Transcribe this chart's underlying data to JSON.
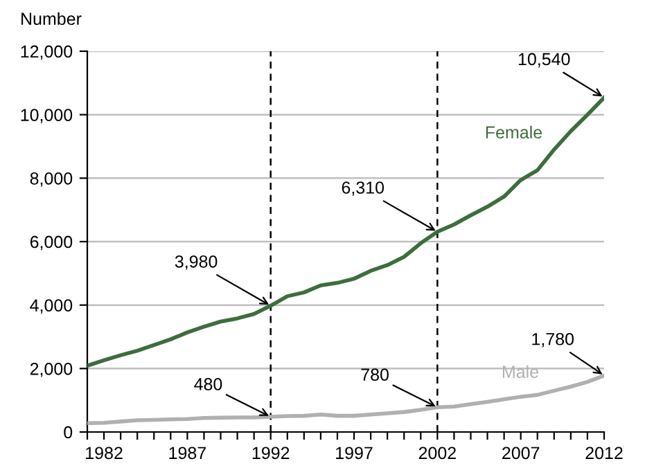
{
  "chart_data": {
    "type": "line",
    "ylabel": "Number",
    "x": [
      1981,
      1982,
      1983,
      1984,
      1985,
      1986,
      1987,
      1988,
      1989,
      1990,
      1991,
      1992,
      1993,
      1994,
      1995,
      1996,
      1997,
      1998,
      1999,
      2000,
      2001,
      2002,
      2003,
      2004,
      2005,
      2006,
      2007,
      2008,
      2009,
      2010,
      2011,
      2012
    ],
    "series": [
      {
        "name": "Female",
        "color": "#3c6e3c",
        "values": [
          2090,
          2260,
          2420,
          2560,
          2740,
          2920,
          3140,
          3320,
          3480,
          3580,
          3720,
          3980,
          4280,
          4400,
          4620,
          4700,
          4830,
          5080,
          5260,
          5520,
          5950,
          6310,
          6540,
          6830,
          7100,
          7420,
          7940,
          8250,
          8900,
          9480,
          10000,
          10540
        ]
      },
      {
        "name": "Male",
        "color": "#b0b0b0",
        "values": [
          280,
          290,
          330,
          370,
          380,
          400,
          410,
          440,
          450,
          460,
          460,
          480,
          500,
          510,
          550,
          510,
          510,
          550,
          590,
          630,
          700,
          780,
          800,
          880,
          950,
          1030,
          1110,
          1170,
          1300,
          1430,
          1580,
          1780
        ]
      }
    ],
    "xlim": [
      1981,
      2012
    ],
    "xticks": [
      {
        "value": 1981,
        "label": null
      },
      1982,
      {
        "value": 1983,
        "label": null
      },
      {
        "value": 1984,
        "label": null
      },
      {
        "value": 1985,
        "label": null
      },
      {
        "value": 1986,
        "label": null
      },
      1987,
      {
        "value": 1988,
        "label": null
      },
      {
        "value": 1989,
        "label": null
      },
      {
        "value": 1990,
        "label": null
      },
      {
        "value": 1991,
        "label": null
      },
      1992,
      {
        "value": 1993,
        "label": null
      },
      {
        "value": 1994,
        "label": null
      },
      {
        "value": 1995,
        "label": null
      },
      {
        "value": 1996,
        "label": null
      },
      1997,
      {
        "value": 1998,
        "label": null
      },
      {
        "value": 1999,
        "label": null
      },
      {
        "value": 2000,
        "label": null
      },
      {
        "value": 2001,
        "label": null
      },
      2002,
      {
        "value": 2003,
        "label": null
      },
      {
        "value": 2004,
        "label": null
      },
      {
        "value": 2005,
        "label": null
      },
      {
        "value": 2006,
        "label": null
      },
      2007,
      {
        "value": 2008,
        "label": null
      },
      {
        "value": 2009,
        "label": null
      },
      {
        "value": 2010,
        "label": null
      },
      {
        "value": 2011,
        "label": null
      },
      2012
    ],
    "ylim": [
      0,
      12000
    ],
    "yticks": [
      0,
      {
        "value": 2000,
        "label": "2,000"
      },
      {
        "value": 4000,
        "label": "4,000"
      },
      {
        "value": 6000,
        "label": "6,000"
      },
      {
        "value": 8000,
        "label": "8,000"
      },
      {
        "value": 10000,
        "label": "10,000"
      },
      {
        "value": 12000,
        "label": "12,000"
      }
    ],
    "grid": "y",
    "legend": false,
    "ref_lines": [
      {
        "axis": "x",
        "value": 1992,
        "color": "#000000",
        "line_style": "dashed"
      },
      {
        "axis": "x",
        "value": 2002,
        "color": "#000000",
        "line_style": "dashed"
      }
    ],
    "annotations": [
      {
        "text": "3,980",
        "x": 1992,
        "y": 3980
      },
      {
        "text": "6,310",
        "x": 2002,
        "y": 6310
      },
      {
        "text": "10,540",
        "x": 2012,
        "y": 10540
      },
      {
        "text": "480",
        "x": 1992,
        "y": 480
      },
      {
        "text": "780",
        "x": 2002,
        "y": 780
      },
      {
        "text": "1,780",
        "x": 2012,
        "y": 1780
      }
    ]
  }
}
